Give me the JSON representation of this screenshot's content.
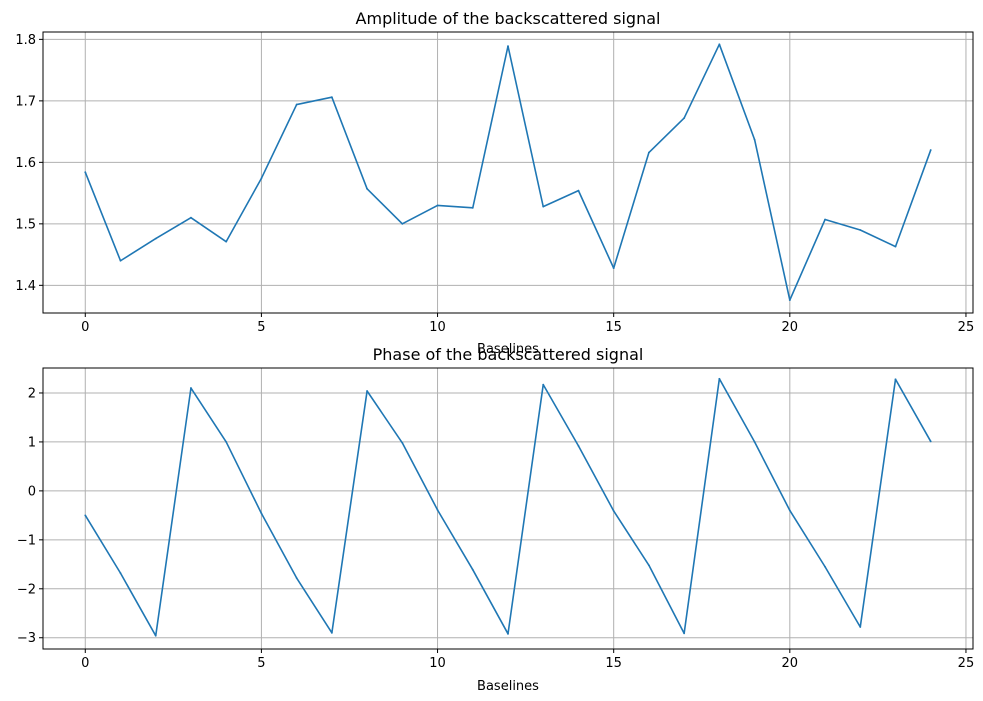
{
  "chart_data": [
    {
      "type": "line",
      "title": "Amplitude of the backscattered signal",
      "xlabel": "Baselines",
      "ylabel": "",
      "grid": true,
      "xlim": [
        -1.2,
        25.2
      ],
      "ylim": [
        1.355,
        1.812
      ],
      "xticks": [
        0,
        5,
        10,
        15,
        20,
        25
      ],
      "yticks": [
        1.4,
        1.5,
        1.6,
        1.7,
        1.8
      ],
      "ytick_labels": [
        "1.4",
        "1.5",
        "1.6",
        "1.7",
        "1.8"
      ],
      "color": "#1f77b4",
      "series": [
        {
          "x": [
            0,
            1,
            2,
            3,
            4,
            5,
            6,
            7,
            8,
            9,
            10,
            11,
            12,
            13,
            14,
            15,
            16,
            17,
            18,
            19,
            20,
            21,
            22,
            23,
            24
          ],
          "values": [
            1.584,
            1.44,
            1.476,
            1.51,
            1.471,
            1.574,
            1.694,
            1.706,
            1.557,
            1.5,
            1.53,
            1.526,
            1.789,
            1.528,
            1.554,
            1.428,
            1.616,
            1.672,
            1.792,
            1.637,
            1.376,
            1.507,
            1.49,
            1.463,
            1.62
          ]
        }
      ]
    },
    {
      "type": "line",
      "title": "Phase of the backscattered signal",
      "xlabel": "Baselines",
      "ylabel": "",
      "grid": true,
      "xlim": [
        -1.2,
        25.2
      ],
      "ylim": [
        -3.23,
        2.51
      ],
      "xticks": [
        0,
        5,
        10,
        15,
        20,
        25
      ],
      "yticks": [
        -3,
        -2,
        -1,
        0,
        1,
        2
      ],
      "ytick_labels": [
        "−3",
        "−2",
        "−1",
        "0",
        "1",
        "2"
      ],
      "color": "#1f77b4",
      "series": [
        {
          "x": [
            0,
            1,
            2,
            3,
            4,
            5,
            6,
            7,
            8,
            9,
            10,
            11,
            12,
            13,
            14,
            15,
            16,
            17,
            18,
            19,
            20,
            21,
            22,
            23,
            24
          ],
          "values": [
            -0.5,
            -1.68,
            -2.96,
            2.1,
            1.0,
            -0.46,
            -1.78,
            -2.9,
            2.04,
            0.98,
            -0.39,
            -1.61,
            -2.92,
            2.17,
            0.92,
            -0.41,
            -1.52,
            -2.91,
            2.29,
            1.0,
            -0.4,
            -1.55,
            -2.78,
            2.28,
            1.01
          ]
        }
      ]
    }
  ]
}
